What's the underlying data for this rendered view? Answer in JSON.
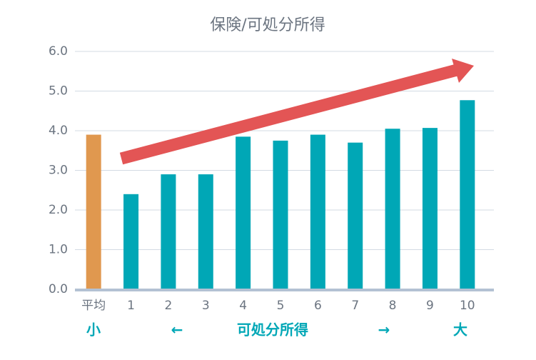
{
  "chart_data": {
    "type": "bar",
    "title": "保険/可処分所得",
    "categories": [
      "平均",
      "1",
      "2",
      "3",
      "4",
      "5",
      "6",
      "7",
      "8",
      "9",
      "10"
    ],
    "values": [
      3.9,
      2.4,
      2.9,
      2.9,
      3.85,
      3.75,
      3.9,
      3.7,
      4.05,
      4.07,
      4.77
    ],
    "colors": [
      "#e0984f",
      "#00a7b6",
      "#00a7b6",
      "#00a7b6",
      "#00a7b6",
      "#00a7b6",
      "#00a7b6",
      "#00a7b6",
      "#00a7b6",
      "#00a7b6",
      "#00a7b6"
    ],
    "ylim": [
      0,
      6
    ],
    "yticks": [
      {
        "value": 0,
        "label": "0.0"
      },
      {
        "value": 1,
        "label": "1.0"
      },
      {
        "value": 2,
        "label": "2.0"
      },
      {
        "value": 3,
        "label": "3.0"
      },
      {
        "value": 4,
        "label": "4.0"
      },
      {
        "value": 5,
        "label": "5.0"
      },
      {
        "value": 6,
        "label": "6.0"
      }
    ],
    "grid": true,
    "annotations": [
      "小",
      "←",
      "可処分所得",
      "→",
      "大"
    ]
  }
}
